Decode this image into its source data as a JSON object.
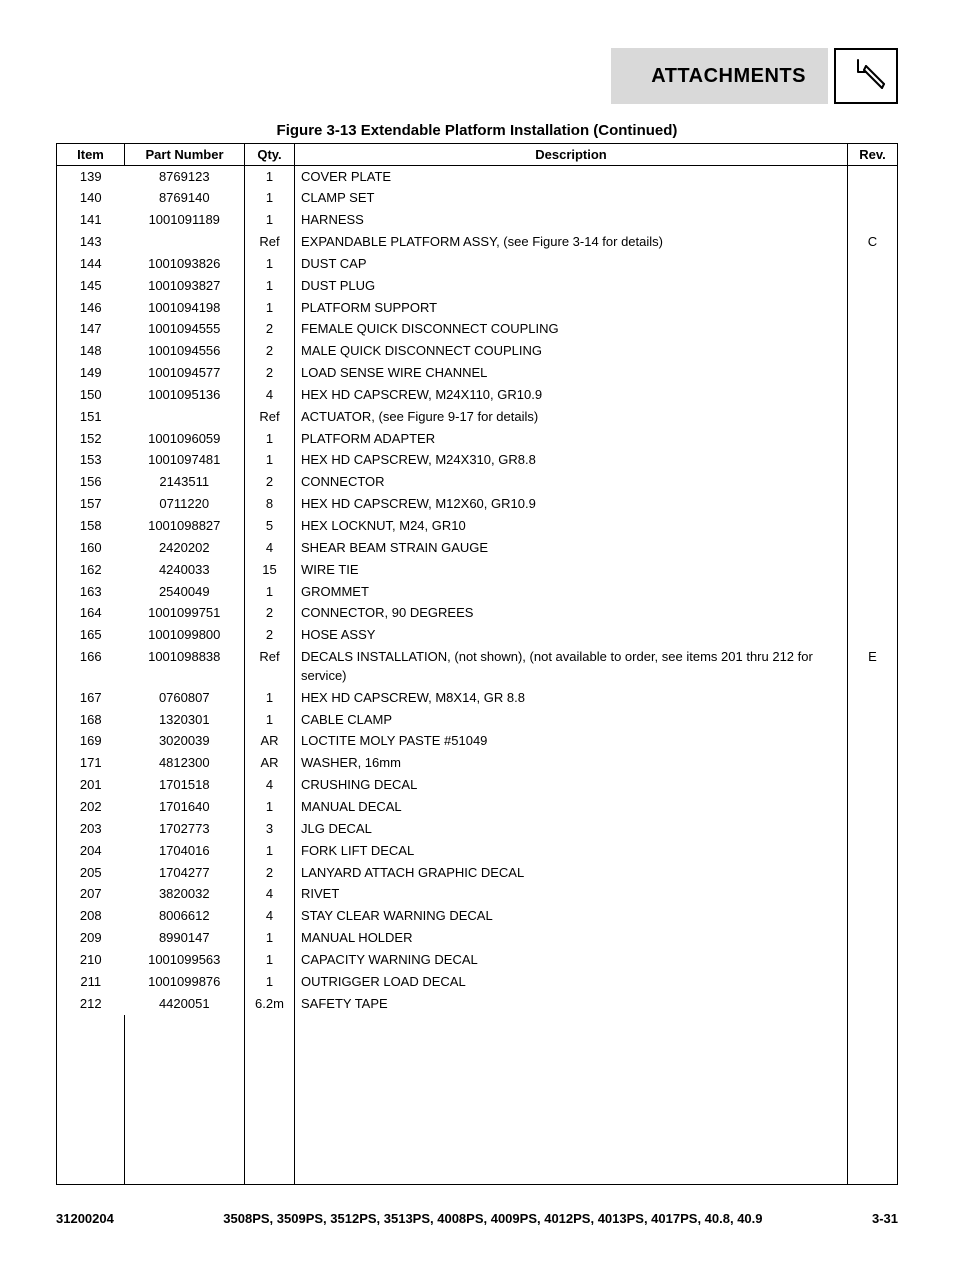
{
  "header": {
    "section_title": "ATTACHMENTS"
  },
  "figure_title": "Figure 3-13 Extendable Platform Installation (Continued)",
  "table": {
    "columns": [
      "Item",
      "Part Number",
      "Qty.",
      "Description",
      "Rev."
    ],
    "rows": [
      {
        "item": "139",
        "part": "8769123",
        "qty": "1",
        "desc": "COVER PLATE",
        "rev": ""
      },
      {
        "item": "140",
        "part": "8769140",
        "qty": "1",
        "desc": "CLAMP SET",
        "rev": ""
      },
      {
        "item": "141",
        "part": "1001091189",
        "qty": "1",
        "desc": "HARNESS",
        "rev": ""
      },
      {
        "item": "143",
        "part": "",
        "qty": "Ref",
        "desc": "EXPANDABLE PLATFORM ASSY, (see Figure 3-14 for details)",
        "rev": "C"
      },
      {
        "item": "144",
        "part": "1001093826",
        "qty": "1",
        "desc": "DUST CAP",
        "rev": ""
      },
      {
        "item": "145",
        "part": "1001093827",
        "qty": "1",
        "desc": "DUST PLUG",
        "rev": ""
      },
      {
        "item": "146",
        "part": "1001094198",
        "qty": "1",
        "desc": "PLATFORM SUPPORT",
        "rev": ""
      },
      {
        "item": "147",
        "part": "1001094555",
        "qty": "2",
        "desc": "FEMALE QUICK DISCONNECT COUPLING",
        "rev": ""
      },
      {
        "item": "148",
        "part": "1001094556",
        "qty": "2",
        "desc": "MALE QUICK DISCONNECT COUPLING",
        "rev": ""
      },
      {
        "item": "149",
        "part": "1001094577",
        "qty": "2",
        "desc": "LOAD SENSE WIRE CHANNEL",
        "rev": ""
      },
      {
        "item": "150",
        "part": "1001095136",
        "qty": "4",
        "desc": "HEX HD CAPSCREW, M24X110, GR10.9",
        "rev": ""
      },
      {
        "item": "151",
        "part": "",
        "qty": "Ref",
        "desc": "ACTUATOR, (see Figure 9-17 for details)",
        "rev": ""
      },
      {
        "item": "152",
        "part": "1001096059",
        "qty": "1",
        "desc": "PLATFORM ADAPTER",
        "rev": ""
      },
      {
        "item": "153",
        "part": "1001097481",
        "qty": "1",
        "desc": "HEX HD CAPSCREW, M24X310, GR8.8",
        "rev": ""
      },
      {
        "item": "156",
        "part": "2143511",
        "qty": "2",
        "desc": "CONNECTOR",
        "rev": ""
      },
      {
        "item": "157",
        "part": "0711220",
        "qty": "8",
        "desc": "HEX HD CAPSCREW, M12X60, GR10.9",
        "rev": ""
      },
      {
        "item": "158",
        "part": "1001098827",
        "qty": "5",
        "desc": "HEX LOCKNUT, M24, GR10",
        "rev": ""
      },
      {
        "item": "160",
        "part": "2420202",
        "qty": "4",
        "desc": "SHEAR BEAM STRAIN GAUGE",
        "rev": ""
      },
      {
        "item": "162",
        "part": "4240033",
        "qty": "15",
        "desc": "WIRE TIE",
        "rev": ""
      },
      {
        "item": "163",
        "part": "2540049",
        "qty": "1",
        "desc": "GROMMET",
        "rev": ""
      },
      {
        "item": "164",
        "part": "1001099751",
        "qty": "2",
        "desc": "CONNECTOR, 90 DEGREES",
        "rev": ""
      },
      {
        "item": "165",
        "part": "1001099800",
        "qty": "2",
        "desc": "HOSE ASSY",
        "rev": ""
      },
      {
        "item": "166",
        "part": "1001098838",
        "qty": "Ref",
        "desc": "DECALS INSTALLATION, (not shown), (not available to order, see items 201 thru 212 for service)",
        "rev": "E"
      },
      {
        "item": "167",
        "part": "0760807",
        "qty": "1",
        "desc": "HEX HD CAPSCREW, M8X14, GR 8.8",
        "rev": ""
      },
      {
        "item": "168",
        "part": "1320301",
        "qty": "1",
        "desc": "CABLE CLAMP",
        "rev": ""
      },
      {
        "item": "169",
        "part": "3020039",
        "qty": "AR",
        "desc": "LOCTITE MOLY PASTE #51049",
        "rev": ""
      },
      {
        "item": "171",
        "part": "4812300",
        "qty": "AR",
        "desc": "WASHER, 16mm",
        "rev": ""
      },
      {
        "item": "201",
        "part": "1701518",
        "qty": "4",
        "desc": "CRUSHING DECAL",
        "rev": ""
      },
      {
        "item": "202",
        "part": "1701640",
        "qty": "1",
        "desc": "MANUAL DECAL",
        "rev": ""
      },
      {
        "item": "203",
        "part": "1702773",
        "qty": "3",
        "desc": "JLG DECAL",
        "rev": ""
      },
      {
        "item": "204",
        "part": "1704016",
        "qty": "1",
        "desc": "FORK LIFT DECAL",
        "rev": ""
      },
      {
        "item": "205",
        "part": "1704277",
        "qty": "2",
        "desc": "LANYARD ATTACH GRAPHIC DECAL",
        "rev": ""
      },
      {
        "item": "207",
        "part": "3820032",
        "qty": "4",
        "desc": "RIVET",
        "rev": ""
      },
      {
        "item": "208",
        "part": "8006612",
        "qty": "4",
        "desc": "STAY CLEAR WARNING DECAL",
        "rev": ""
      },
      {
        "item": "209",
        "part": "8990147",
        "qty": "1",
        "desc": "MANUAL HOLDER",
        "rev": ""
      },
      {
        "item": "210",
        "part": "1001099563",
        "qty": "1",
        "desc": "CAPACITY WARNING DECAL",
        "rev": ""
      },
      {
        "item": "211",
        "part": "1001099876",
        "qty": "1",
        "desc": "OUTRIGGER LOAD DECAL",
        "rev": ""
      },
      {
        "item": "212",
        "part": "4420051",
        "qty": "6.2m",
        "desc": "SAFETY TAPE",
        "rev": ""
      }
    ]
  },
  "footer": {
    "doc_number": "31200204",
    "models": "3508PS, 3509PS, 3512PS, 3513PS, 4008PS, 4009PS, 4012PS, 4013PS, 4017PS, 40.8, 40.9",
    "page": "3-31"
  }
}
